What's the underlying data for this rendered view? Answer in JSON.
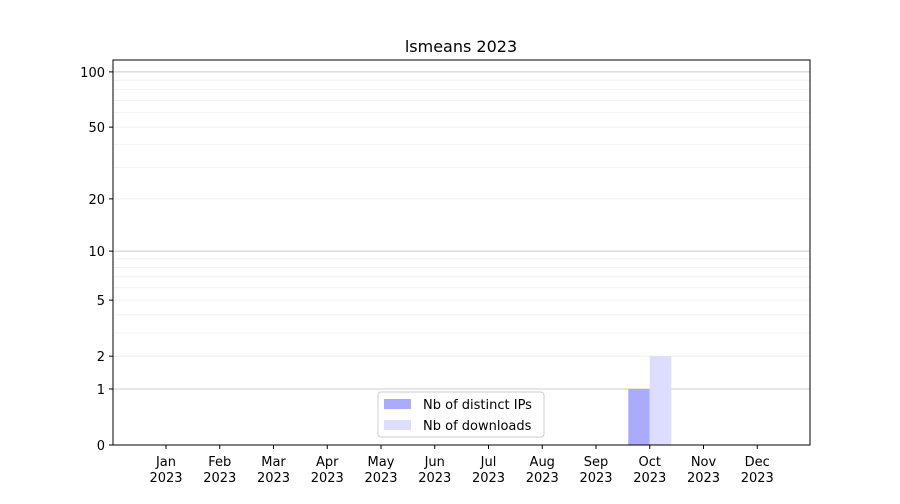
{
  "chart_data": {
    "type": "bar",
    "title": "lsmeans 2023",
    "xlabel": "",
    "ylabel": "",
    "yscale": "log(1+y)",
    "ylim": [
      0,
      116
    ],
    "yticks": [
      0,
      1,
      2,
      5,
      10,
      20,
      50,
      100
    ],
    "grid": true,
    "legend_position": "bottom-center",
    "categories": [
      "Jan\n2023",
      "Feb\n2023",
      "Mar\n2023",
      "Apr\n2023",
      "May\n2023",
      "Jun\n2023",
      "Jul\n2023",
      "Aug\n2023",
      "Sep\n2023",
      "Oct\n2023",
      "Nov\n2023",
      "Dec\n2023"
    ],
    "series": [
      {
        "name": "Nb of distinct IPs",
        "color": "#aaaaff",
        "values": [
          0,
          0,
          0,
          0,
          0,
          0,
          0,
          0,
          0,
          1,
          0,
          0
        ]
      },
      {
        "name": "Nb of downloads",
        "color": "#ddddff",
        "values": [
          0,
          0,
          0,
          0,
          0,
          0,
          0,
          0,
          0,
          2,
          0,
          0
        ]
      }
    ]
  }
}
